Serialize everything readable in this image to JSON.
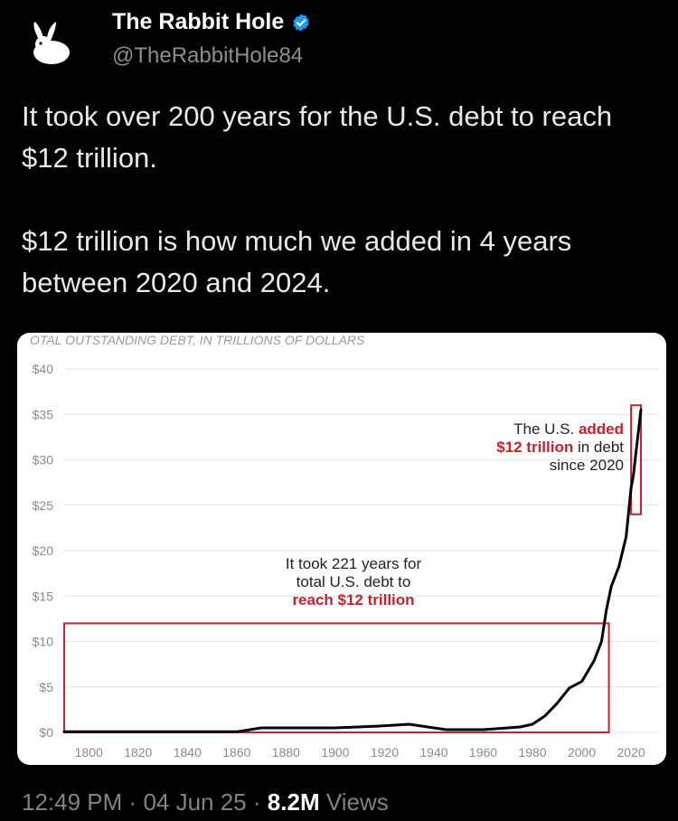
{
  "author": {
    "name": "The Rabbit Hole",
    "handle": "@TheRabbitHole84"
  },
  "tweet": {
    "paragraph1": "It took over 200 years for the U.S. debt to reach $12 trillion.",
    "paragraph2": "$12 trillion is how much we added in 4 years between 2020 and 2024."
  },
  "meta": {
    "time": "12:49 PM",
    "separator": "·",
    "date": "04 Jun 25",
    "views_count": "8.2M",
    "views_label": "Views"
  },
  "colors": {
    "background": "#000000",
    "verified_badge": "#1d9bf0",
    "chart_highlight": "#c0242f"
  },
  "icons": {
    "avatar": "rabbit-icon",
    "verified": "verified-badge-icon"
  },
  "chart_data": {
    "type": "line",
    "title": "OTAL OUTSTANDING DEBT, IN TRILLIONS OF DOLLARS",
    "xlabel": "",
    "ylabel": "",
    "xlim": [
      1790,
      2024
    ],
    "ylim": [
      0,
      40
    ],
    "grid": true,
    "x_ticks": [
      1800,
      1820,
      1840,
      1860,
      1880,
      1900,
      1920,
      1940,
      1960,
      1980,
      2000,
      2020
    ],
    "x_tick_labels": [
      "1800",
      "1820",
      "1840",
      "1860",
      "1880",
      "1900",
      "1920",
      "1940",
      "1960",
      "1980",
      "2000",
      "2020"
    ],
    "y_ticks": [
      0,
      5,
      10,
      15,
      20,
      25,
      30,
      35,
      40
    ],
    "y_tick_labels": [
      "$0",
      "$5",
      "$10",
      "$15",
      "$20",
      "$25",
      "$30",
      "$35",
      "$40"
    ],
    "series": [
      {
        "x": [
          1790,
          1860,
          1870,
          1900,
          1918,
          1930,
          1940,
          1945,
          1960,
          1970,
          1975,
          1980,
          1985,
          1990,
          1995,
          2000,
          2005,
          2008,
          2010,
          2012,
          2015,
          2018,
          2020,
          2021,
          2022,
          2023,
          2024
        ],
        "values": [
          0.08,
          0.07,
          0.5,
          0.5,
          0.7,
          0.9,
          0.5,
          0.3,
          0.3,
          0.5,
          0.6,
          0.9,
          1.8,
          3.2,
          4.9,
          5.6,
          7.9,
          10,
          13.5,
          16.1,
          18.2,
          21.5,
          26.9,
          28.4,
          30.8,
          33.2,
          35.5
        ]
      }
    ],
    "annotations": [
      {
        "lines": [
          "It took 221 years for",
          "total U.S. debt to"
        ],
        "highlight": "reach $12 trillion",
        "box": {
          "x_from": 1790,
          "x_to": 2011,
          "y_from": 0,
          "y_to": 12
        }
      },
      {
        "line1_plain": "The U.S. ",
        "line1_highlight": "added",
        "line2_highlight": "$12 trillion",
        "line2_plain": " in debt",
        "line3": "since 2020",
        "box": {
          "x_from": 2020,
          "x_to": 2024,
          "y_from": 24,
          "y_to": 36
        }
      }
    ]
  }
}
